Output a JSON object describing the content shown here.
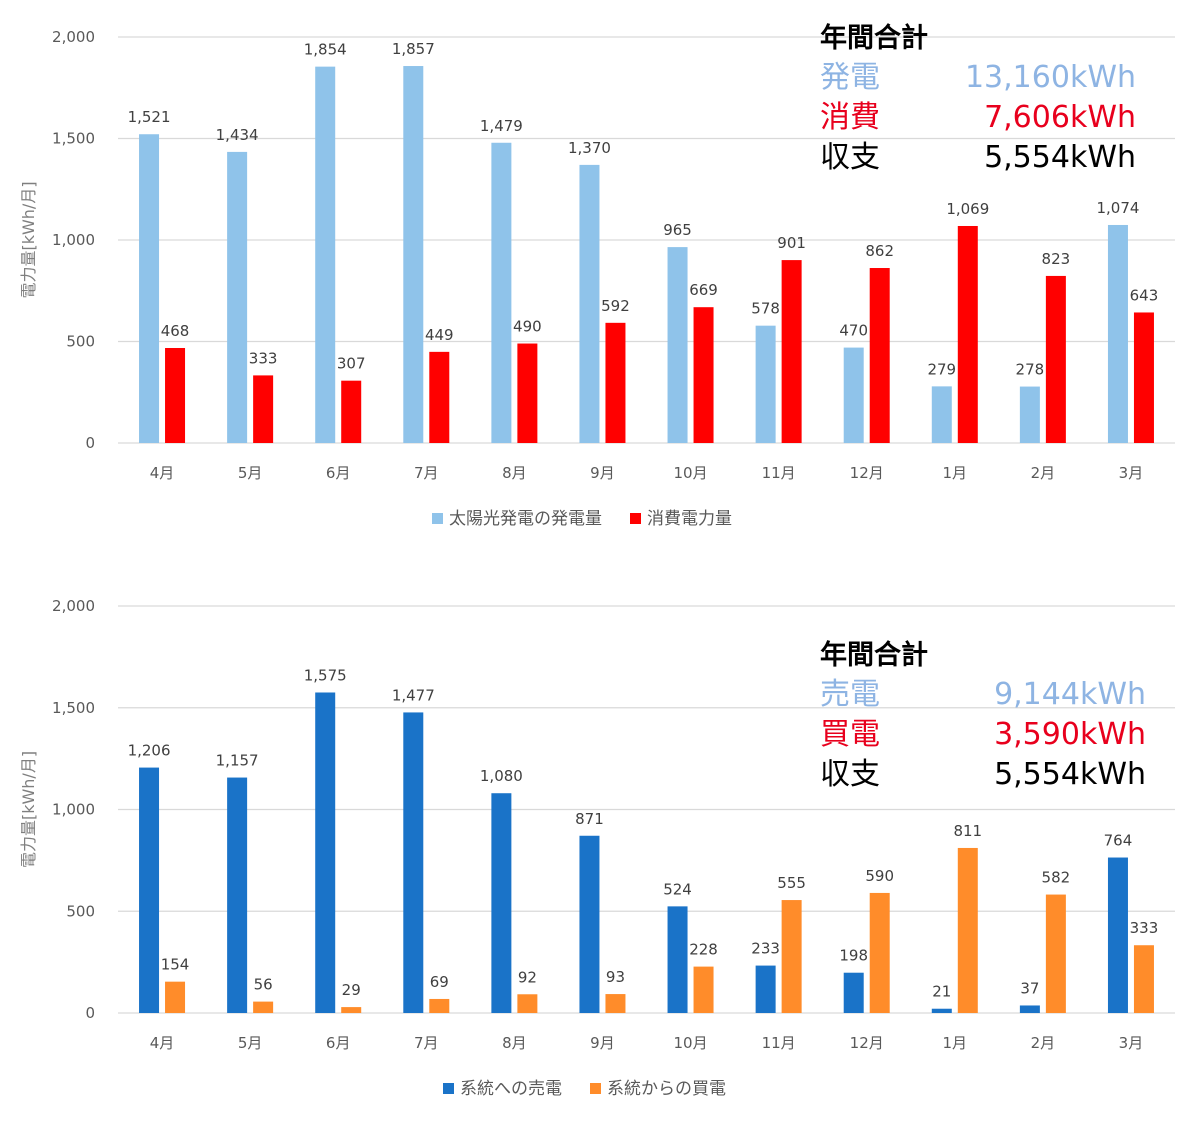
{
  "chart_data": [
    {
      "type": "bar",
      "ylabel": "電力量[kWh/月]",
      "ylim": [
        0,
        2000
      ],
      "yticks": [
        0,
        500,
        1000,
        1500,
        2000
      ],
      "ytick_labels": [
        "0",
        "500",
        "1,000",
        "1,500",
        "2,000"
      ],
      "categories": [
        "4月",
        "5月",
        "6月",
        "7月",
        "8月",
        "9月",
        "10月",
        "11月",
        "12月",
        "1月",
        "2月",
        "3月"
      ],
      "grid": true,
      "legend_position": "bottom",
      "series": [
        {
          "name": "太陽光発電の発電量",
          "color": "#8fc3ea",
          "values": [
            1521,
            1434,
            1854,
            1857,
            1479,
            1370,
            965,
            578,
            470,
            279,
            278,
            1074
          ],
          "labels": [
            "1,521",
            "1,434",
            "1,854",
            "1,857",
            "1,479",
            "1,370",
            "965",
            "578",
            "470",
            "279",
            "278",
            "1,074"
          ]
        },
        {
          "name": "消費電力量",
          "color": "#ff0000",
          "values": [
            468,
            333,
            307,
            449,
            490,
            592,
            669,
            901,
            862,
            1069,
            823,
            643
          ],
          "labels": [
            "468",
            "333",
            "307",
            "449",
            "490",
            "592",
            "669",
            "901",
            "862",
            "1,069",
            "823",
            "643"
          ]
        }
      ],
      "summary": {
        "title": "年間合計",
        "rows": [
          {
            "label": "発電",
            "value": "13,160kWh",
            "color": "#8eb4e3"
          },
          {
            "label": "消費",
            "value": "7,606kWh",
            "color": "#e8001d"
          },
          {
            "label": "収支",
            "value": "5,554kWh",
            "color": "#000000"
          }
        ]
      }
    },
    {
      "type": "bar",
      "ylabel": "電力量[kWh/月]",
      "ylim": [
        0,
        2000
      ],
      "yticks": [
        0,
        500,
        1000,
        1500,
        2000
      ],
      "ytick_labels": [
        "0",
        "500",
        "1,000",
        "1,500",
        "2,000"
      ],
      "categories": [
        "4月",
        "5月",
        "6月",
        "7月",
        "8月",
        "9月",
        "10月",
        "11月",
        "12月",
        "1月",
        "2月",
        "3月"
      ],
      "grid": true,
      "legend_position": "bottom",
      "series": [
        {
          "name": "系統への売電",
          "color": "#1a73c8",
          "values": [
            1206,
            1157,
            1575,
            1477,
            1080,
            871,
            524,
            233,
            198,
            21,
            37,
            764
          ],
          "labels": [
            "1,206",
            "1,157",
            "1,575",
            "1,477",
            "1,080",
            "871",
            "524",
            "233",
            "198",
            "21",
            "37",
            "764"
          ]
        },
        {
          "name": "系統からの買電",
          "color": "#ff8c2a",
          "values": [
            154,
            56,
            29,
            69,
            92,
            93,
            228,
            555,
            590,
            811,
            582,
            333
          ],
          "labels": [
            "154",
            "56",
            "29",
            "69",
            "92",
            "93",
            "228",
            "555",
            "590",
            "811",
            "582",
            "333"
          ]
        }
      ],
      "summary": {
        "title": "年間合計",
        "rows": [
          {
            "label": "売電",
            "value": "9,144kWh",
            "color": "#8eb4e3"
          },
          {
            "label": "買電",
            "value": "3,590kWh",
            "color": "#e8001d"
          },
          {
            "label": "収支",
            "value": "5,554kWh",
            "color": "#000000"
          }
        ]
      }
    }
  ]
}
